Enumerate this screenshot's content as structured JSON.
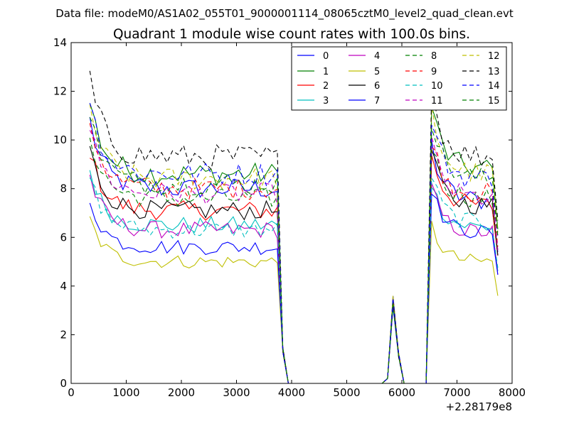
{
  "chart_data": {
    "type": "line",
    "suptitle": "Data file: modeM0/AS1A02_055T01_9000001114_08065cztM0_level2_quad_clean.evt",
    "title": "Quadrant 1 module wise count rates with 100.0s bins.",
    "xlabel": "",
    "ylabel": "",
    "x_offset_label": "+2.28179e8",
    "xlim": [
      0,
      8000
    ],
    "ylim": [
      0,
      14
    ],
    "x_ticks": [
      0,
      1000,
      2000,
      3000,
      4000,
      5000,
      6000,
      7000,
      8000
    ],
    "y_ticks": [
      0,
      2,
      4,
      6,
      8,
      10,
      12,
      14
    ],
    "grid": false,
    "legend_position": "top-right",
    "legend_columns": 4,
    "x": [
      340,
      440,
      540,
      640,
      740,
      840,
      940,
      1040,
      1140,
      1240,
      1340,
      1440,
      1540,
      1640,
      1740,
      1840,
      1940,
      2040,
      2140,
      2240,
      2340,
      2440,
      2540,
      2640,
      2740,
      2840,
      2940,
      3040,
      3140,
      3240,
      3340,
      3440,
      3540,
      3640,
      3740,
      3840,
      3940,
      4040,
      4140,
      4240,
      4340,
      4440,
      4540,
      4640,
      4740,
      4840,
      4940,
      5040,
      5140,
      5240,
      5340,
      5440,
      5540,
      5640,
      5740,
      5840,
      5940,
      6040,
      6140,
      6240,
      6340,
      6440,
      6540,
      6640,
      6740,
      6840,
      6940,
      7040,
      7140,
      7240,
      7340,
      7440,
      7540,
      7640,
      7740
    ],
    "series": [
      {
        "name": "0",
        "color": "#0000ff",
        "dash": "solid",
        "level": 8.0,
        "end": 7.5
      },
      {
        "name": "1",
        "color": "#008000",
        "dash": "solid",
        "level": 8.6,
        "end": 8.8
      },
      {
        "name": "2",
        "color": "#ff0000",
        "dash": "solid",
        "level": 7.1,
        "end": 7.3
      },
      {
        "name": "3",
        "color": "#00bfbf",
        "dash": "solid",
        "level": 6.5,
        "end": 6.4
      },
      {
        "name": "4",
        "color": "#bf00bf",
        "dash": "solid",
        "level": 6.3,
        "end": 6.2
      },
      {
        "name": "5",
        "color": "#bfbf00",
        "dash": "solid",
        "level": 5.0,
        "end": 5.0
      },
      {
        "name": "6",
        "color": "#000000",
        "dash": "solid",
        "level": 7.1,
        "end": 7.3
      },
      {
        "name": "7",
        "color": "#0000ff",
        "dash": "solid",
        "level": 5.6,
        "end": 6.2
      },
      {
        "name": "8",
        "color": "#008000",
        "dash": "dashed",
        "level": 7.6,
        "end": 7.6
      },
      {
        "name": "9",
        "color": "#ff0000",
        "dash": "dashed",
        "level": 8.0,
        "end": 7.8
      },
      {
        "name": "10",
        "color": "#00bfbf",
        "dash": "dashed",
        "level": 6.3,
        "end": 6.6
      },
      {
        "name": "11",
        "color": "#bf00bf",
        "dash": "dashed",
        "level": 7.8,
        "end": 7.6
      },
      {
        "name": "12",
        "color": "#bfbf00",
        "dash": "dashed",
        "level": 8.4,
        "end": 8.6
      },
      {
        "name": "13",
        "color": "#000000",
        "dash": "dashed",
        "level": 9.3,
        "end": 9.3
      },
      {
        "name": "14",
        "color": "#0000ff",
        "dash": "dashed",
        "level": 8.6,
        "end": 8.4
      },
      {
        "name": "15",
        "color": "#008000",
        "dash": "dashed",
        "level": 8.2,
        "end": 8.4
      }
    ]
  }
}
